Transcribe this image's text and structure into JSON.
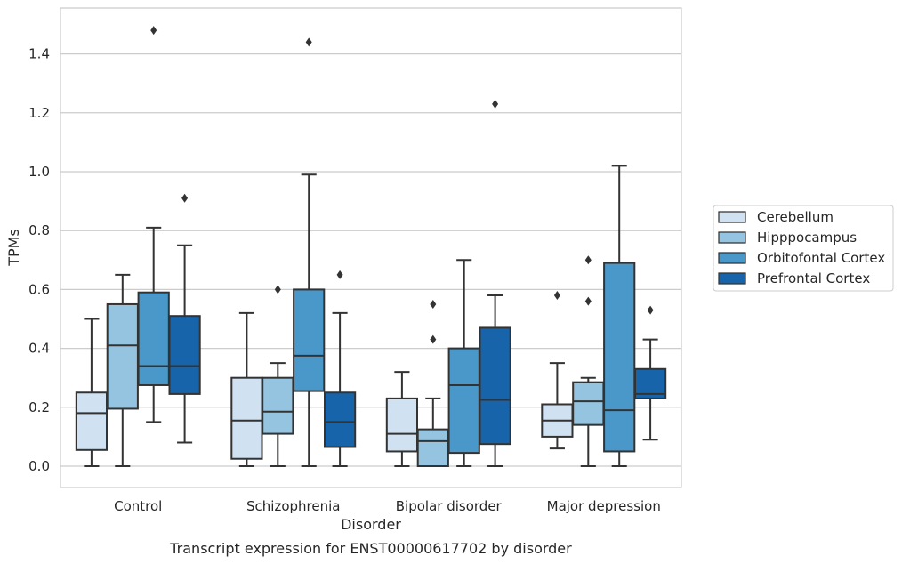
{
  "chart_data": {
    "type": "box",
    "caption": "Transcript expression for ENST00000617702 by disorder",
    "xlabel": "Disorder",
    "ylabel": "TPMs",
    "ylim": [
      -0.07,
      1.56
    ],
    "yticks": [
      0.0,
      0.2,
      0.4,
      0.6,
      0.8,
      1.0,
      1.2,
      1.4
    ],
    "ytick_labels": [
      "0.0",
      "0.2",
      "0.4",
      "0.6",
      "0.8",
      "1.0",
      "1.2",
      "1.4"
    ],
    "grid": "horizontal",
    "legend_position": "right",
    "categories": [
      "Control",
      "Schizophrenia",
      "Bipolar disorder",
      "Major depression"
    ],
    "series": [
      {
        "name": "Cerebellum",
        "color": "#d0e1f2",
        "boxes": [
          {
            "whislo": 0.0,
            "q1": 0.055,
            "med": 0.18,
            "q3": 0.25,
            "whishi": 0.5,
            "fliers": []
          },
          {
            "whislo": 0.0,
            "q1": 0.025,
            "med": 0.155,
            "q3": 0.3,
            "whishi": 0.52,
            "fliers": []
          },
          {
            "whislo": 0.0,
            "q1": 0.05,
            "med": 0.11,
            "q3": 0.23,
            "whishi": 0.32,
            "fliers": []
          },
          {
            "whislo": 0.06,
            "q1": 0.1,
            "med": 0.155,
            "q3": 0.21,
            "whishi": 0.35,
            "fliers": [
              0.58
            ]
          }
        ]
      },
      {
        "name": "Hipppocampus",
        "color": "#94c4df",
        "boxes": [
          {
            "whislo": 0.0,
            "q1": 0.195,
            "med": 0.41,
            "q3": 0.55,
            "whishi": 0.65,
            "fliers": []
          },
          {
            "whislo": 0.0,
            "q1": 0.11,
            "med": 0.185,
            "q3": 0.3,
            "whishi": 0.35,
            "fliers": [
              0.6
            ]
          },
          {
            "whislo": 0.0,
            "q1": 0.0,
            "med": 0.085,
            "q3": 0.125,
            "whishi": 0.23,
            "fliers": [
              0.43,
              0.55
            ]
          },
          {
            "whislo": 0.0,
            "q1": 0.14,
            "med": 0.22,
            "q3": 0.285,
            "whishi": 0.3,
            "fliers": [
              0.56,
              0.7
            ]
          }
        ]
      },
      {
        "name": "Orbitofontal Cortex",
        "color": "#4a98c9",
        "boxes": [
          {
            "whislo": 0.15,
            "q1": 0.275,
            "med": 0.34,
            "q3": 0.59,
            "whishi": 0.81,
            "fliers": [
              1.48
            ]
          },
          {
            "whislo": 0.0,
            "q1": 0.255,
            "med": 0.375,
            "q3": 0.6,
            "whishi": 0.99,
            "fliers": [
              1.44
            ]
          },
          {
            "whislo": 0.0,
            "q1": 0.045,
            "med": 0.275,
            "q3": 0.4,
            "whishi": 0.7,
            "fliers": []
          },
          {
            "whislo": 0.0,
            "q1": 0.05,
            "med": 0.19,
            "q3": 0.69,
            "whishi": 1.02,
            "fliers": []
          }
        ]
      },
      {
        "name": "Prefrontal Cortex",
        "color": "#1764ab",
        "boxes": [
          {
            "whislo": 0.08,
            "q1": 0.245,
            "med": 0.34,
            "q3": 0.51,
            "whishi": 0.75,
            "fliers": [
              0.91
            ]
          },
          {
            "whislo": 0.0,
            "q1": 0.065,
            "med": 0.15,
            "q3": 0.25,
            "whishi": 0.52,
            "fliers": [
              0.65
            ]
          },
          {
            "whislo": 0.0,
            "q1": 0.075,
            "med": 0.225,
            "q3": 0.47,
            "whishi": 0.58,
            "fliers": [
              1.23
            ]
          },
          {
            "whislo": 0.09,
            "q1": 0.23,
            "med": 0.245,
            "q3": 0.33,
            "whishi": 0.43,
            "fliers": [
              0.53
            ]
          }
        ]
      }
    ]
  }
}
